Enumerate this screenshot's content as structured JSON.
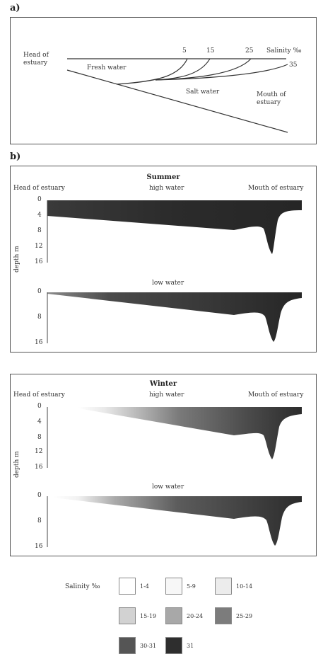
{
  "panel_a": {
    "label": "a)",
    "head": [
      "Head of",
      "estuary"
    ],
    "mouth": [
      "Mouth of",
      "estuary"
    ],
    "fresh_water": "Fresh water",
    "salt_water": "Salt water",
    "salinity_label": "Salinity ‰",
    "isohalines": [
      "5",
      "15",
      "25",
      "35"
    ]
  },
  "panel_b": {
    "label": "b)",
    "seasons": [
      {
        "title": "Summer",
        "head": "Head of estuary",
        "mouth": "Mouth of estuary",
        "high_water": "high water",
        "low_water": "low water",
        "depth_label": "depth m",
        "high_ticks": [
          "0",
          "4",
          "8",
          "12",
          "16"
        ],
        "low_ticks": [
          "0",
          "8",
          "16"
        ]
      },
      {
        "title": "Winter",
        "head": "Head of estuary",
        "mouth": "Mouth of estuary",
        "high_water": "high water",
        "low_water": "low water",
        "depth_label": "depth m",
        "high_ticks": [
          "0",
          "4",
          "8",
          "12",
          "16"
        ],
        "low_ticks": [
          "0",
          "8",
          "16"
        ]
      }
    ]
  },
  "legend": {
    "title": "Salinity ‰",
    "items": [
      {
        "label": "1-4",
        "color": "#ffffff"
      },
      {
        "label": "5-9",
        "color": "#f7f7f7"
      },
      {
        "label": "10-14",
        "color": "#ececec"
      },
      {
        "label": "15-19",
        "color": "#d2d2d2"
      },
      {
        "label": "20-24",
        "color": "#a8a8a8"
      },
      {
        "label": "25-29",
        "color": "#7c7c7c"
      },
      {
        "label": "30-31",
        "color": "#555555"
      },
      {
        "label": "31",
        "color": "#2e2e2e"
      }
    ]
  }
}
